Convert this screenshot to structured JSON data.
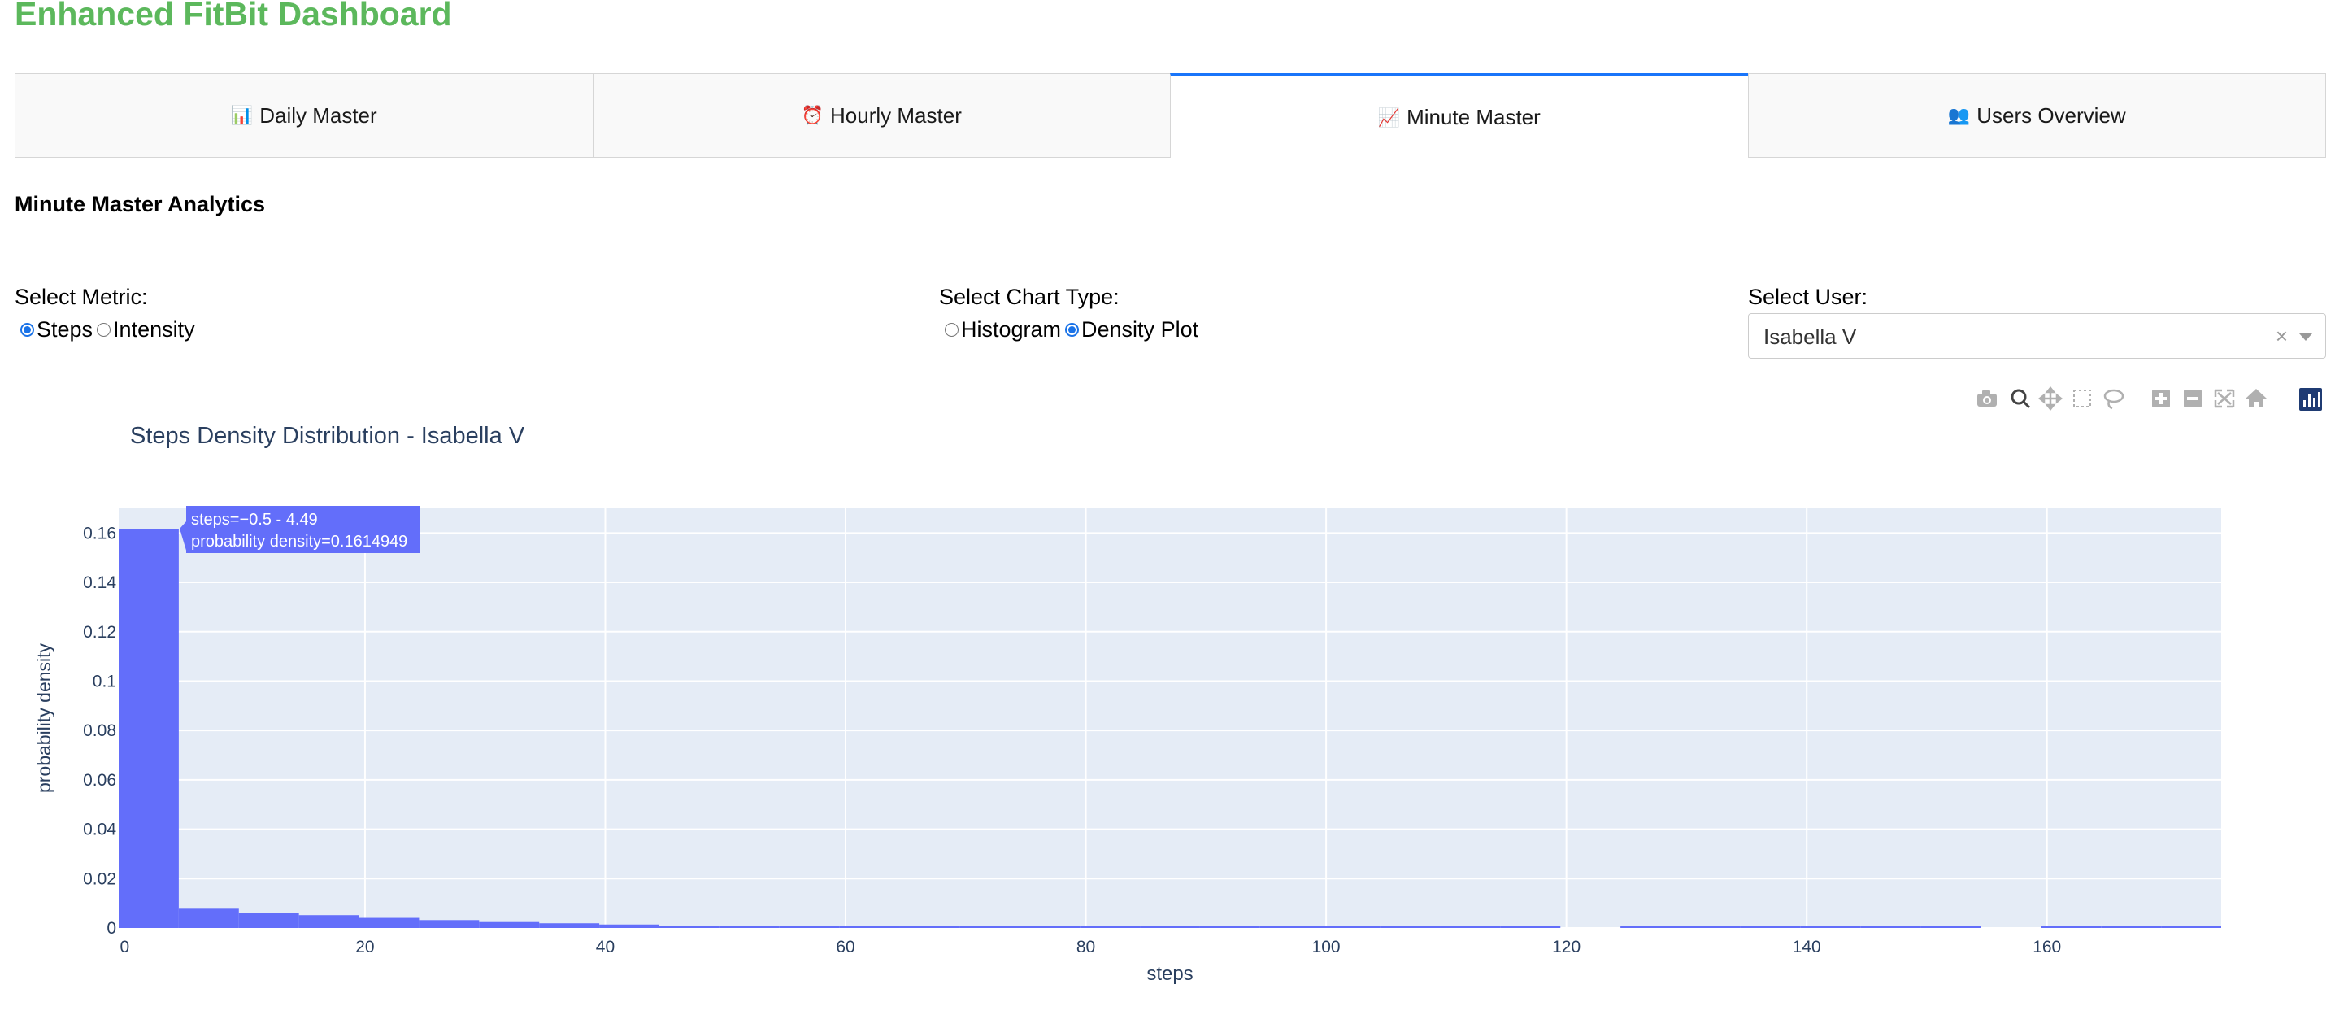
{
  "app_title": "Enhanced FitBit Dashboard",
  "tabs": [
    {
      "icon": "📊",
      "label": "Daily Master",
      "active": false
    },
    {
      "icon": "⏰",
      "label": "Hourly Master",
      "active": false
    },
    {
      "icon": "📈",
      "label": "Minute Master",
      "active": true
    },
    {
      "icon": "👥",
      "label": "Users Overview",
      "active": false
    }
  ],
  "section_title": "Minute Master Analytics",
  "metric": {
    "label": "Select Metric:",
    "options": [
      "Steps",
      "Intensity"
    ],
    "selected": "Steps"
  },
  "chart_type": {
    "label": "Select Chart Type:",
    "options": [
      "Histogram",
      "Density Plot"
    ],
    "selected": "Density Plot"
  },
  "user": {
    "label": "Select User:",
    "value": "Isabella V",
    "clear": "×"
  },
  "modebar_icons": [
    "camera-icon",
    "zoom-icon",
    "pan-icon",
    "box-select-icon",
    "lasso-icon",
    "zoom-in-icon",
    "zoom-out-icon",
    "autoscale-icon",
    "reset-axes-icon",
    "plotly-logo-icon"
  ],
  "colors": {
    "accent_green": "#5cb85c",
    "bar": "#636efa",
    "plot_bg": "#e5ecf6",
    "tab_active": "#1975fa"
  },
  "chart_data": {
    "type": "bar",
    "title": "Steps Density Distribution - Isabella V",
    "xlabel": "steps",
    "ylabel": "probability density",
    "xlim": [
      -0.5,
      174.5
    ],
    "ylim": [
      0,
      0.17
    ],
    "bin_width": 5,
    "x_ticks": [
      "0",
      "20",
      "40",
      "60",
      "80",
      "100",
      "120",
      "140",
      "160"
    ],
    "x_tick_values": [
      0,
      20,
      40,
      60,
      80,
      100,
      120,
      140,
      160
    ],
    "y_ticks": [
      "0",
      "0.02",
      "0.04",
      "0.06",
      "0.08",
      "0.1",
      "0.12",
      "0.14",
      "0.16"
    ],
    "y_tick_values": [
      0,
      0.02,
      0.04,
      0.06,
      0.08,
      0.1,
      0.12,
      0.14,
      0.16
    ],
    "bin_starts": [
      -0.5,
      4.5,
      9.5,
      14.5,
      19.5,
      24.5,
      29.5,
      34.5,
      39.5,
      44.5,
      49.5,
      54.5,
      59.5,
      64.5,
      69.5,
      74.5,
      79.5,
      84.5,
      89.5,
      94.5,
      99.5,
      104.5,
      109.5,
      114.5,
      119.5,
      124.5,
      129.5,
      134.5,
      139.5,
      144.5,
      149.5,
      154.5,
      159.5,
      164.5,
      169.5
    ],
    "values": [
      0.1614949,
      0.0078,
      0.0062,
      0.0052,
      0.0041,
      0.0032,
      0.0024,
      0.0019,
      0.0014,
      0.0009,
      0.0007,
      0.0005,
      0.0004,
      0.0003,
      0.0003,
      0.0003,
      0.0003,
      0.0003,
      0.0003,
      0.0003,
      0.0003,
      0.0003,
      0.0003,
      0.0003,
      0,
      0.0003,
      0.0003,
      0.0003,
      0.0003,
      0.0003,
      0.0003,
      0,
      0.0003,
      0.0003,
      0.0003
    ],
    "tooltip": {
      "line1": "steps=−0.5 - 4.49",
      "line2": "probability density=0.1614949"
    }
  }
}
